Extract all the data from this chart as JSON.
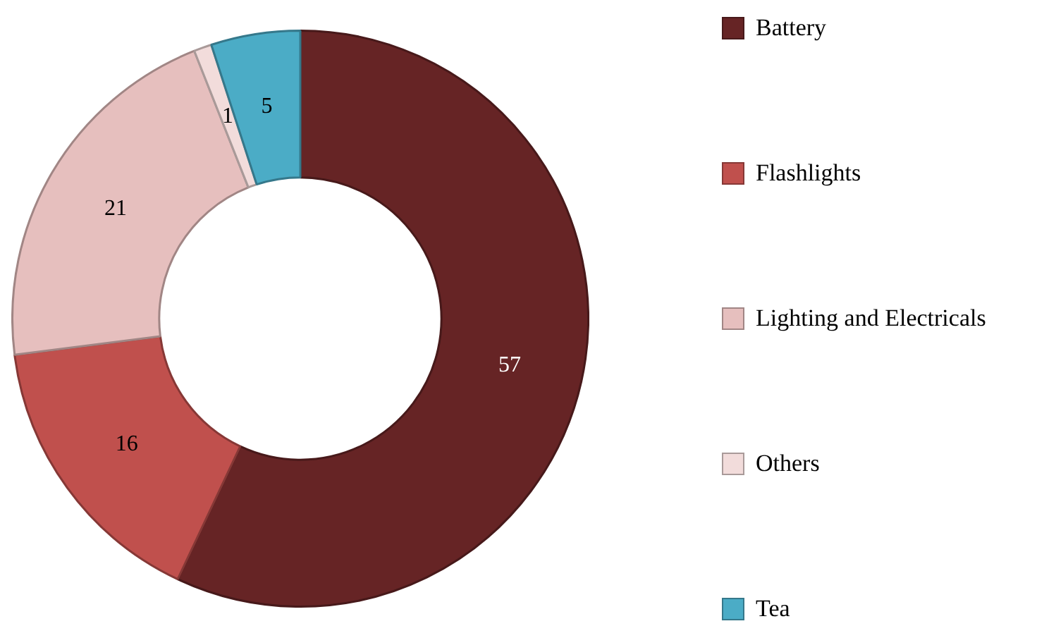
{
  "chart_data": {
    "type": "donut",
    "categories": [
      "Battery",
      "Flashlights",
      "Lighting and Electricals",
      "Others",
      "Tea"
    ],
    "values": [
      57,
      16,
      21,
      1,
      5
    ],
    "colors": [
      "#662425",
      "#c0504d",
      "#e6bfbe",
      "#f2dcdb",
      "#4bacc6"
    ],
    "data_labels": true,
    "legend": "right"
  }
}
